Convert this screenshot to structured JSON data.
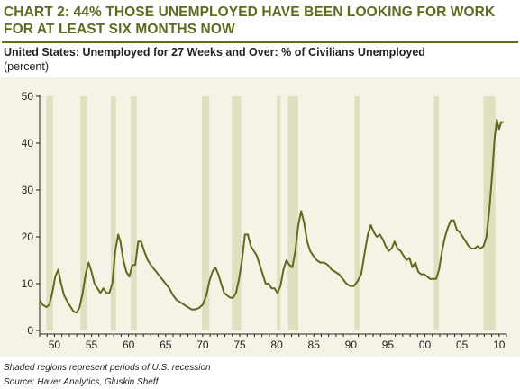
{
  "header": {
    "title": "CHART 2: 44% THOSE UNEMPLOYED HAVE BEEN LOOKING FOR WORK\nFOR AT LEAST SIX MONTHS NOW"
  },
  "colors": {
    "title": "#5e6a1e",
    "line": "#5e6a1e",
    "recession": "#dfe0bf",
    "plot_background": "#f4f3e6",
    "axis": "#222222"
  },
  "chart_data": {
    "type": "line",
    "title": "United States: Unemployed for 27 Weeks and Over: % of Civilians Unemployed",
    "subtitle": "(percent)",
    "xlabel": "",
    "ylabel": "",
    "xlim": [
      1948,
      2011
    ],
    "ylim": [
      0,
      50
    ],
    "yticks": [
      0,
      10,
      20,
      30,
      40,
      50
    ],
    "xticks": [
      {
        "year": 1950,
        "label": "50"
      },
      {
        "year": 1955,
        "label": "55"
      },
      {
        "year": 1960,
        "label": "60"
      },
      {
        "year": 1965,
        "label": "65"
      },
      {
        "year": 1970,
        "label": "70"
      },
      {
        "year": 1975,
        "label": "75"
      },
      {
        "year": 1980,
        "label": "80"
      },
      {
        "year": 1985,
        "label": "85"
      },
      {
        "year": 1990,
        "label": "90"
      },
      {
        "year": 1995,
        "label": "95"
      },
      {
        "year": 2000,
        "label": "00"
      },
      {
        "year": 2005,
        "label": "05"
      },
      {
        "year": 2010,
        "label": "10"
      }
    ],
    "grid": false,
    "legend": "none",
    "recessions": [
      [
        1948.9,
        1949.8
      ],
      [
        1953.5,
        1954.4
      ],
      [
        1957.6,
        1958.3
      ],
      [
        1960.3,
        1961.1
      ],
      [
        1969.9,
        1970.9
      ],
      [
        1973.9,
        1975.2
      ],
      [
        1980.0,
        1980.5
      ],
      [
        1981.5,
        1982.9
      ],
      [
        1990.5,
        1991.2
      ],
      [
        2001.2,
        2001.9
      ],
      [
        2007.9,
        2009.5
      ]
    ],
    "series": [
      {
        "x": [
          1948.0,
          1948.4,
          1948.9,
          1949.3,
          1949.7,
          1950.1,
          1950.5,
          1950.9,
          1951.3,
          1951.8,
          1952.2,
          1952.6,
          1953.0,
          1953.4,
          1953.8,
          1954.2,
          1954.6,
          1955.0,
          1955.4,
          1955.8,
          1956.2,
          1956.6,
          1957.0,
          1957.4,
          1957.8,
          1958.2,
          1958.6,
          1958.9,
          1959.3,
          1959.7,
          1960.1,
          1960.5,
          1960.9,
          1961.3,
          1961.7,
          1962.1,
          1962.6,
          1963.0,
          1963.5,
          1964.0,
          1964.5,
          1965.0,
          1965.5,
          1966.0,
          1966.5,
          1967.0,
          1967.5,
          1968.0,
          1968.5,
          1969.0,
          1969.5,
          1970.0,
          1970.5,
          1970.9,
          1971.3,
          1971.7,
          1972.1,
          1972.5,
          1972.9,
          1973.3,
          1973.7,
          1974.1,
          1974.5,
          1974.9,
          1975.3,
          1975.7,
          1976.1,
          1976.5,
          1976.9,
          1977.3,
          1977.7,
          1978.1,
          1978.5,
          1978.9,
          1979.3,
          1979.7,
          1980.1,
          1980.5,
          1980.9,
          1981.3,
          1981.7,
          1982.1,
          1982.5,
          1982.9,
          1983.3,
          1983.7,
          1984.1,
          1984.5,
          1984.9,
          1985.4,
          1985.9,
          1986.4,
          1986.9,
          1987.4,
          1987.9,
          1988.4,
          1988.9,
          1989.4,
          1989.9,
          1990.4,
          1990.9,
          1991.4,
          1991.9,
          1992.3,
          1992.7,
          1993.1,
          1993.5,
          1993.9,
          1994.3,
          1994.7,
          1995.1,
          1995.5,
          1995.9,
          1996.3,
          1996.7,
          1997.1,
          1997.5,
          1997.9,
          1998.3,
          1998.7,
          1999.1,
          1999.5,
          1999.9,
          2000.3,
          2000.7,
          2001.1,
          2001.5,
          2001.9,
          2002.3,
          2002.7,
          2003.1,
          2003.5,
          2003.9,
          2004.3,
          2004.7,
          2005.1,
          2005.5,
          2005.9,
          2006.3,
          2006.7,
          2007.1,
          2007.5,
          2007.9,
          2008.3,
          2008.7,
          2009.1,
          2009.4,
          2009.7,
          2010.0,
          2010.3,
          2010.6
        ],
        "values": [
          6.5,
          5.5,
          5.0,
          5.5,
          8.0,
          11.5,
          13.0,
          10.0,
          7.5,
          6.0,
          5.0,
          4.0,
          3.8,
          5.0,
          8.0,
          12.0,
          14.5,
          12.5,
          10.0,
          9.0,
          8.0,
          9.0,
          8.0,
          8.0,
          10.0,
          17.0,
          20.5,
          19.0,
          15.0,
          12.5,
          11.5,
          14.0,
          14.0,
          19.0,
          19.0,
          17.0,
          15.0,
          14.0,
          13.0,
          12.0,
          11.0,
          10.0,
          9.0,
          7.5,
          6.5,
          6.0,
          5.5,
          5.0,
          4.5,
          4.5,
          4.8,
          5.5,
          7.5,
          10.5,
          12.5,
          13.5,
          12.0,
          10.0,
          8.0,
          7.5,
          7.0,
          7.0,
          8.0,
          11.0,
          15.0,
          20.5,
          20.5,
          18.0,
          17.0,
          16.0,
          14.0,
          12.0,
          10.0,
          10.0,
          9.0,
          9.0,
          8.0,
          9.5,
          13.0,
          15.0,
          14.0,
          13.5,
          17.0,
          22.5,
          25.5,
          23.0,
          19.0,
          17.0,
          16.0,
          15.0,
          14.5,
          14.5,
          14.0,
          13.0,
          12.5,
          12.0,
          11.0,
          10.0,
          9.5,
          9.5,
          10.5,
          12.0,
          17.0,
          20.5,
          22.5,
          21.0,
          20.0,
          20.5,
          19.5,
          18.0,
          17.0,
          17.5,
          19.0,
          17.5,
          17.0,
          16.0,
          15.0,
          15.5,
          13.5,
          14.5,
          12.5,
          12.0,
          12.0,
          11.5,
          11.0,
          11.0,
          11.0,
          13.0,
          17.0,
          20.0,
          22.0,
          23.5,
          23.5,
          21.5,
          21.0,
          20.0,
          19.0,
          18.0,
          17.5,
          17.5,
          18.0,
          17.5,
          18.0,
          20.0,
          26.0,
          34.0,
          41.0,
          45.0,
          43.0,
          44.5,
          44.5
        ]
      }
    ]
  },
  "footer": {
    "note": "Shaded regions represent periods of U.S. recession",
    "source": "Source: Haver Analytics, Gluskin Sheff"
  }
}
